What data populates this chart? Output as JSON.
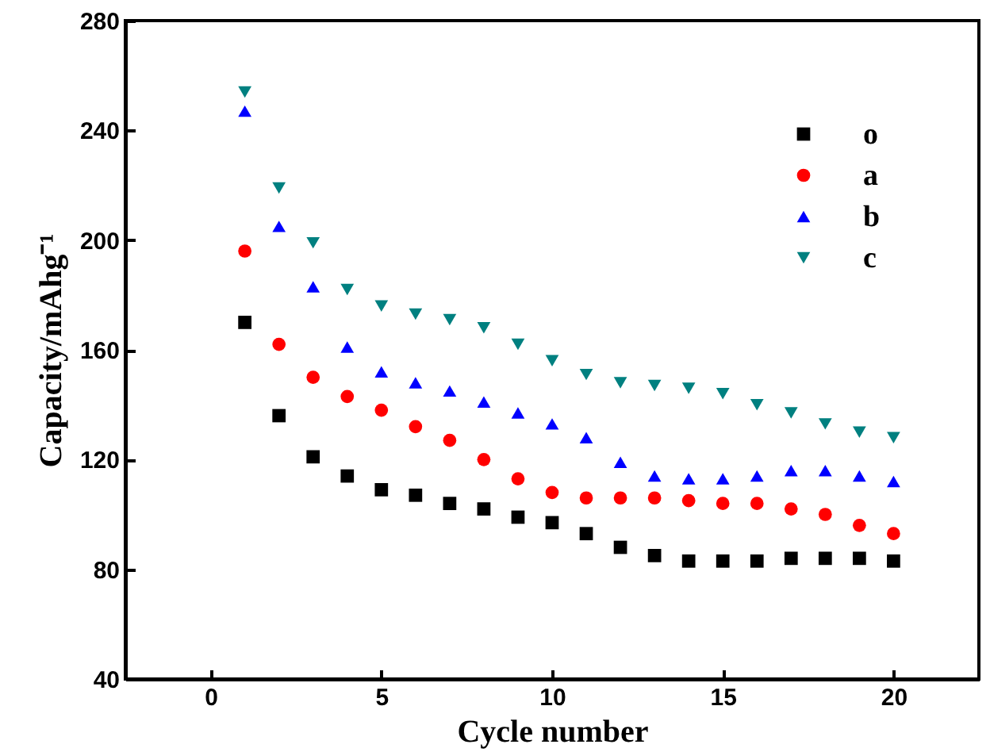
{
  "chart_data": {
    "type": "scatter",
    "xlabel": "Cycle number",
    "ylabel": "Capacity/mAhg⁻¹",
    "x": [
      1,
      2,
      3,
      4,
      5,
      6,
      7,
      8,
      9,
      10,
      11,
      12,
      13,
      14,
      15,
      16,
      17,
      18,
      19,
      20
    ],
    "xlim": [
      -2.5,
      22.5
    ],
    "xticks": [
      0,
      5,
      10,
      15,
      20
    ],
    "ylim": [
      40,
      280
    ],
    "yticks": [
      40,
      80,
      120,
      160,
      200,
      240,
      280
    ],
    "legend": "top right",
    "grid": false,
    "series": [
      {
        "name": "o",
        "color": "#000000",
        "marker": "square",
        "values": [
          170,
          136,
          121,
          114,
          109,
          107,
          104,
          102,
          99,
          97,
          93,
          88,
          85,
          83,
          83,
          83,
          84,
          84,
          84,
          83
        ]
      },
      {
        "name": "a",
        "color": "#ff0000",
        "marker": "circle",
        "values": [
          196,
          162,
          150,
          143,
          138,
          132,
          127,
          120,
          113,
          108,
          106,
          106,
          106,
          105,
          104,
          104,
          102,
          100,
          96,
          93
        ]
      },
      {
        "name": "b",
        "color": "#0000ff",
        "marker": "triangle",
        "values": [
          247,
          205,
          183,
          161,
          152,
          148,
          145,
          141,
          137,
          133,
          128,
          119,
          114,
          113,
          113,
          114,
          116,
          116,
          114,
          112
        ]
      },
      {
        "name": "c",
        "color": "#008080",
        "marker": "triangle-down",
        "values": [
          254,
          219,
          199,
          182,
          176,
          173,
          171,
          168,
          162,
          156,
          151,
          148,
          147,
          146,
          144,
          140,
          137,
          133,
          130,
          128
        ]
      }
    ]
  }
}
